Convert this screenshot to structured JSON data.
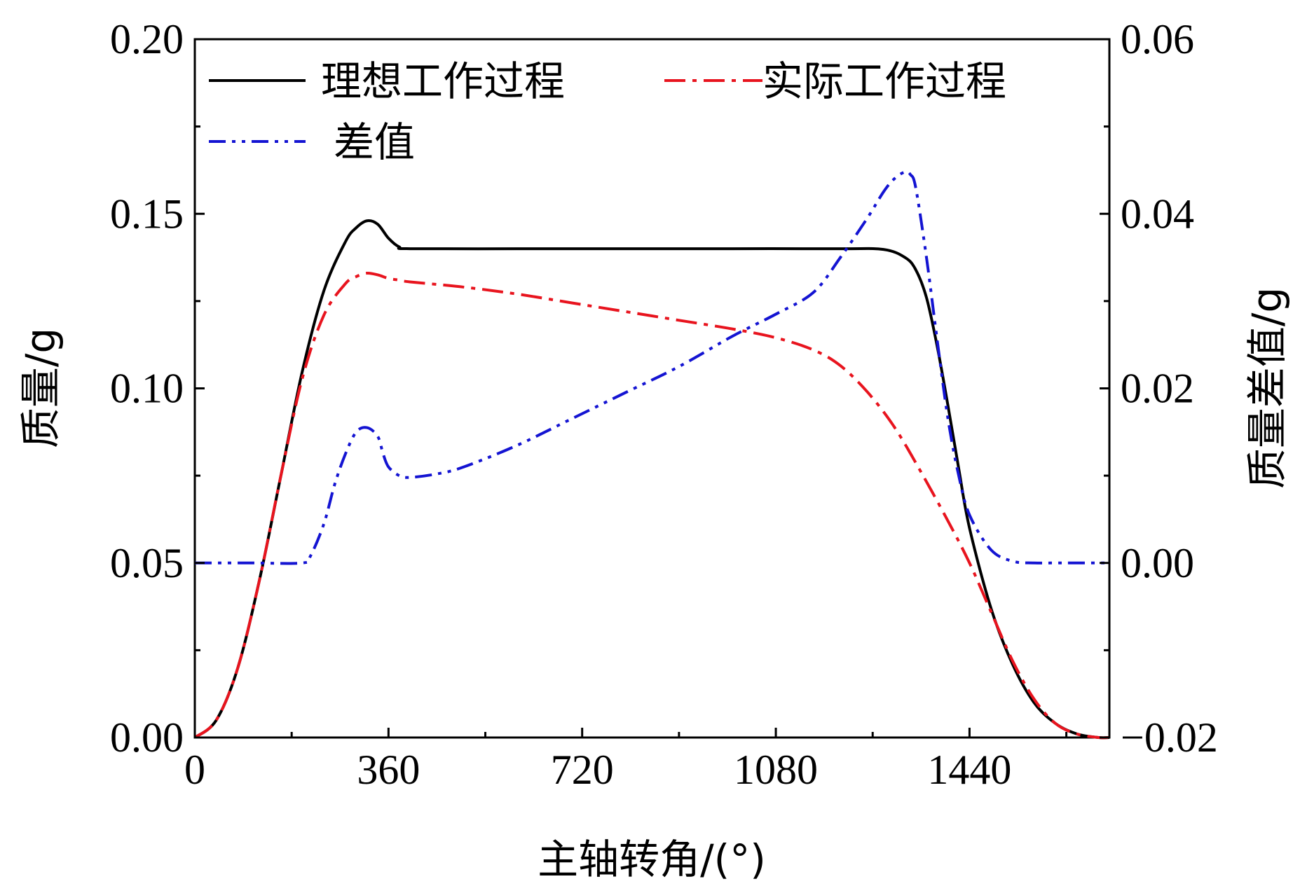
{
  "chart_data": {
    "type": "line",
    "xlabel": "主轴转角/(°)",
    "ylabel_left": "质量/g",
    "ylabel_right": "质量差值/g",
    "xlim": [
      0,
      1700
    ],
    "ylim_left": [
      0.0,
      0.2
    ],
    "ylim_right": [
      -0.02,
      0.06
    ],
    "x_ticks": [
      0,
      360,
      720,
      1080,
      1440
    ],
    "x_tick_labels": [
      "0",
      "360",
      "720",
      "1080",
      "1440"
    ],
    "y_left_ticks": [
      0.0,
      0.05,
      0.1,
      0.15,
      0.2
    ],
    "y_left_tick_labels": [
      "0.00",
      "0.05",
      "0.10",
      "0.15",
      "0.20"
    ],
    "y_right_ticks": [
      -0.02,
      0.0,
      0.02,
      0.04,
      0.06
    ],
    "y_right_tick_labels": [
      "−0.02",
      "0.00",
      "0.02",
      "0.04",
      "0.06"
    ],
    "grid": false,
    "legend_position": "top-left",
    "series": [
      {
        "name": "理想工作过程",
        "axis": "left",
        "color": "#000000",
        "style": "solid",
        "x": [
          0,
          40,
          80,
          120,
          160,
          200,
          240,
          280,
          300,
          320,
          340,
          360,
          380,
          400,
          600,
          800,
          1000,
          1200,
          1280,
          1320,
          1340,
          1360,
          1380,
          1400,
          1420,
          1440,
          1480,
          1520,
          1560,
          1600,
          1640,
          1680,
          1700
        ],
        "y": [
          0.0,
          0.005,
          0.02,
          0.045,
          0.075,
          0.105,
          0.128,
          0.142,
          0.146,
          0.148,
          0.147,
          0.143,
          0.1405,
          0.14,
          0.14,
          0.14,
          0.14,
          0.14,
          0.1398,
          0.1375,
          0.134,
          0.126,
          0.112,
          0.095,
          0.077,
          0.06,
          0.037,
          0.021,
          0.01,
          0.004,
          0.001,
          0.0,
          0.0
        ]
      },
      {
        "name": "实际工作过程",
        "axis": "left",
        "color": "#e8141e",
        "style": "dashdot",
        "x": [
          0,
          40,
          80,
          120,
          160,
          200,
          240,
          280,
          300,
          320,
          340,
          360,
          380,
          400,
          500,
          600,
          700,
          800,
          900,
          1000,
          1080,
          1150,
          1200,
          1250,
          1300,
          1350,
          1400,
          1440,
          1480,
          1520,
          1560,
          1600,
          1640,
          1680,
          1700
        ],
        "y": [
          0.0,
          0.005,
          0.02,
          0.045,
          0.075,
          0.103,
          0.121,
          0.13,
          0.132,
          0.133,
          0.1325,
          0.1315,
          0.131,
          0.1305,
          0.129,
          0.127,
          0.1245,
          0.122,
          0.1195,
          0.117,
          0.1145,
          0.111,
          0.1065,
          0.099,
          0.089,
          0.076,
          0.062,
          0.05,
          0.036,
          0.022,
          0.011,
          0.004,
          0.001,
          0.0,
          0.0
        ]
      },
      {
        "name": "差值",
        "axis": "right",
        "color": "#1414d2",
        "style": "dashdotdot",
        "x": [
          0,
          100,
          200,
          215,
          240,
          260,
          280,
          300,
          320,
          340,
          350,
          360,
          380,
          400,
          450,
          500,
          600,
          700,
          800,
          900,
          1000,
          1080,
          1150,
          1200,
          1250,
          1280,
          1300,
          1320,
          1330,
          1340,
          1360,
          1380,
          1400,
          1420,
          1440,
          1480,
          1520,
          1560,
          1600,
          1640,
          1700
        ],
        "y": [
          0.0,
          0.0,
          0.0,
          0.0008,
          0.0045,
          0.009,
          0.0125,
          0.015,
          0.0155,
          0.0145,
          0.0125,
          0.011,
          0.01,
          0.0098,
          0.0102,
          0.011,
          0.0135,
          0.0165,
          0.0195,
          0.0225,
          0.026,
          0.0285,
          0.031,
          0.035,
          0.0395,
          0.0425,
          0.044,
          0.0448,
          0.0445,
          0.043,
          0.035,
          0.0255,
          0.0165,
          0.01,
          0.0055,
          0.0015,
          0.0002,
          0.0,
          0.0,
          0.0,
          0.0
        ]
      }
    ]
  }
}
